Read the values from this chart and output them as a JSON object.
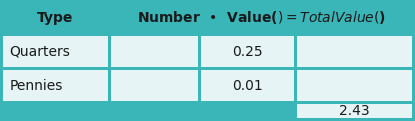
{
  "header_col0": "Type",
  "header_col1": "Number  •  Value($)  =  Total Value($)",
  "rows": [
    [
      "Quarters",
      "",
      "0.25",
      ""
    ],
    [
      "Pennies",
      "",
      "0.01",
      ""
    ]
  ],
  "extra_cell": "2.43",
  "teal": "#3ab5b8",
  "cell_bg": "#e6f4f5",
  "header_text": "#1a1a1a",
  "data_text": "#1a1a1a",
  "header_font_size": 10,
  "data_font_size": 10,
  "fig_w": 4.15,
  "fig_h": 1.21,
  "dpi": 100
}
